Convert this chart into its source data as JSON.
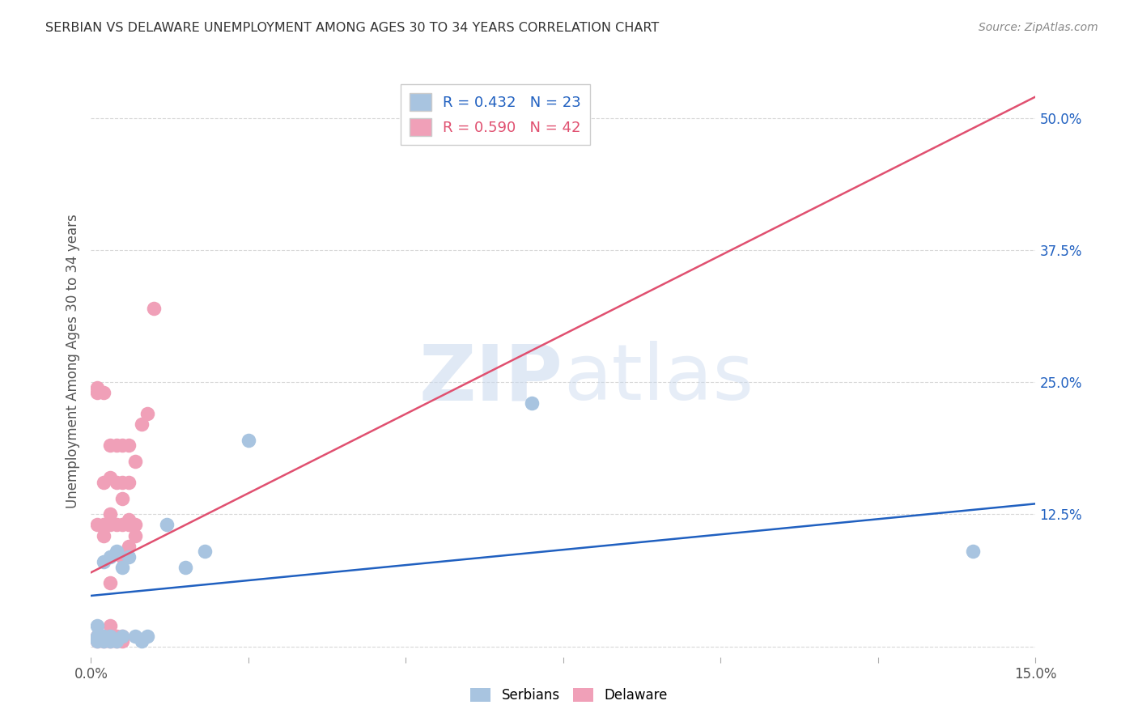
{
  "title": "SERBIAN VS DELAWARE UNEMPLOYMENT AMONG AGES 30 TO 34 YEARS CORRELATION CHART",
  "source": "Source: ZipAtlas.com",
  "ylabel": "Unemployment Among Ages 30 to 34 years",
  "xlim": [
    0.0,
    0.15
  ],
  "ylim": [
    -0.01,
    0.55
  ],
  "xticks": [
    0.0,
    0.025,
    0.05,
    0.075,
    0.1,
    0.125,
    0.15
  ],
  "xticklabels": [
    "0.0%",
    "",
    "",
    "",
    "",
    "",
    "15.0%"
  ],
  "yticks_right": [
    0.0,
    0.125,
    0.25,
    0.375,
    0.5
  ],
  "yticklabels_right": [
    "",
    "12.5%",
    "25.0%",
    "37.5%",
    "50.0%"
  ],
  "serbians_color": "#a8c4e0",
  "delaware_color": "#f0a0b8",
  "serbians_line_color": "#2060c0",
  "delaware_line_color": "#e05070",
  "legend_R_serbians": "R = 0.432",
  "legend_N_serbians": "N = 23",
  "legend_R_delaware": "R = 0.590",
  "legend_N_delaware": "N = 42",
  "serbians_x": [
    0.001,
    0.001,
    0.001,
    0.002,
    0.002,
    0.002,
    0.003,
    0.003,
    0.003,
    0.004,
    0.004,
    0.005,
    0.005,
    0.006,
    0.007,
    0.008,
    0.009,
    0.012,
    0.015,
    0.018,
    0.025,
    0.07,
    0.14
  ],
  "serbians_y": [
    0.005,
    0.01,
    0.02,
    0.005,
    0.01,
    0.08,
    0.005,
    0.01,
    0.085,
    0.005,
    0.09,
    0.075,
    0.01,
    0.085,
    0.01,
    0.005,
    0.01,
    0.115,
    0.075,
    0.09,
    0.195,
    0.23,
    0.09
  ],
  "delaware_x": [
    0.001,
    0.001,
    0.001,
    0.001,
    0.001,
    0.002,
    0.002,
    0.002,
    0.002,
    0.002,
    0.002,
    0.003,
    0.003,
    0.003,
    0.003,
    0.003,
    0.003,
    0.003,
    0.003,
    0.004,
    0.004,
    0.004,
    0.004,
    0.004,
    0.005,
    0.005,
    0.005,
    0.005,
    0.005,
    0.005,
    0.005,
    0.006,
    0.006,
    0.006,
    0.006,
    0.006,
    0.007,
    0.007,
    0.007,
    0.008,
    0.009,
    0.01
  ],
  "delaware_y": [
    0.005,
    0.01,
    0.115,
    0.24,
    0.245,
    0.005,
    0.01,
    0.105,
    0.115,
    0.155,
    0.24,
    0.005,
    0.01,
    0.02,
    0.06,
    0.115,
    0.125,
    0.16,
    0.19,
    0.005,
    0.01,
    0.115,
    0.155,
    0.19,
    0.005,
    0.01,
    0.085,
    0.115,
    0.14,
    0.155,
    0.19,
    0.095,
    0.115,
    0.12,
    0.155,
    0.19,
    0.105,
    0.115,
    0.175,
    0.21,
    0.22,
    0.32
  ],
  "serb_line_x0": 0.0,
  "serb_line_y0": 0.048,
  "serb_line_x1": 0.15,
  "serb_line_y1": 0.135,
  "del_line_x0": 0.0,
  "del_line_y0": 0.07,
  "del_line_x1": 0.15,
  "del_line_y1": 0.52,
  "background_color": "#ffffff",
  "grid_color": "#d8d8d8"
}
